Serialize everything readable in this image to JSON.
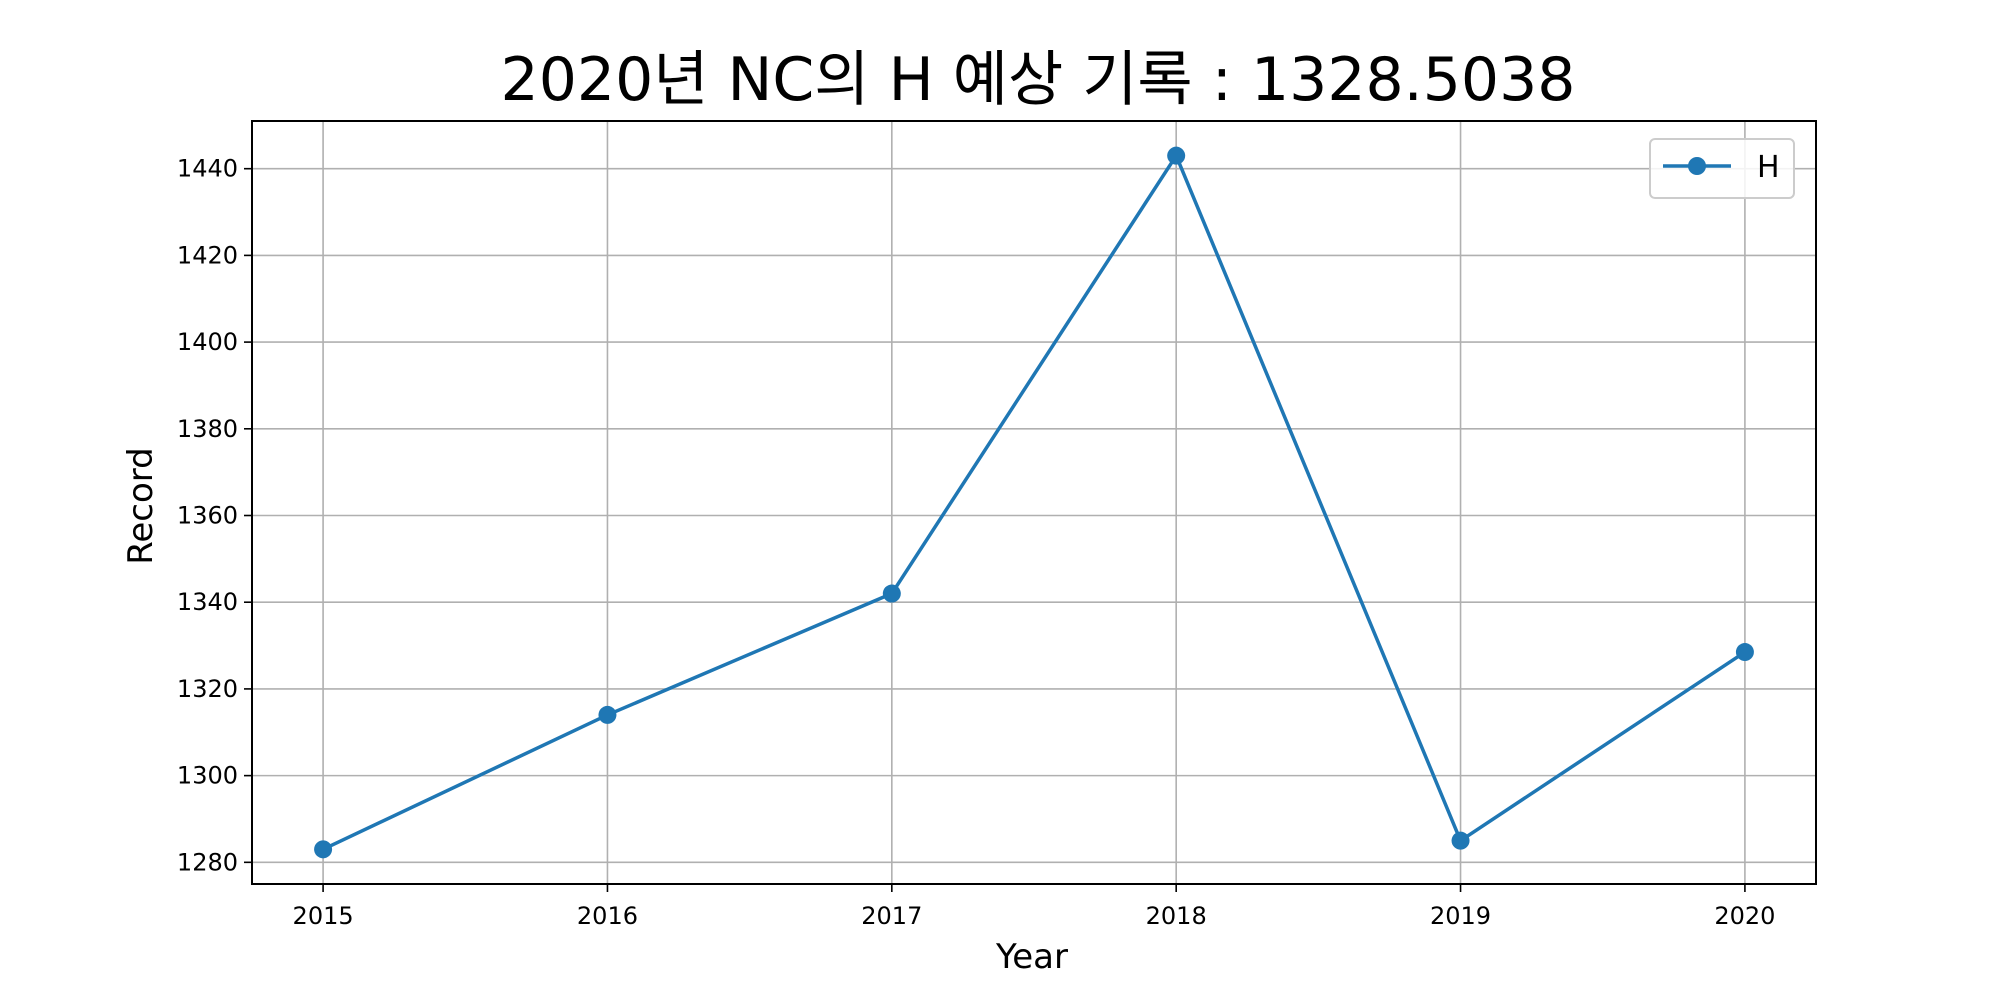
{
  "chart_data": {
    "type": "line",
    "title": "2020년 NC의 H 예상 기록 : 1328.5038",
    "xlabel": "Year",
    "ylabel": "Record",
    "x": [
      2015,
      2016,
      2017,
      2018,
      2019,
      2020
    ],
    "x_tick_labels": [
      "2015",
      "2016",
      "2017",
      "2018",
      "2019",
      "2020"
    ],
    "xlim": [
      2014.75,
      2020.25
    ],
    "y_ticks": [
      1280,
      1300,
      1320,
      1340,
      1360,
      1380,
      1400,
      1420,
      1440
    ],
    "y_tick_labels": [
      "1280",
      "1300",
      "1320",
      "1340",
      "1360",
      "1380",
      "1400",
      "1420",
      "1440"
    ],
    "ylim": [
      1275.0,
      1451.0
    ],
    "grid": true,
    "legend": {
      "placement": "top-right"
    },
    "series": [
      {
        "name": "H",
        "color": "#1f77b4",
        "marker": "circle",
        "values": [
          1283,
          1314,
          1342,
          1443,
          1285,
          1328.5038
        ]
      }
    ]
  }
}
